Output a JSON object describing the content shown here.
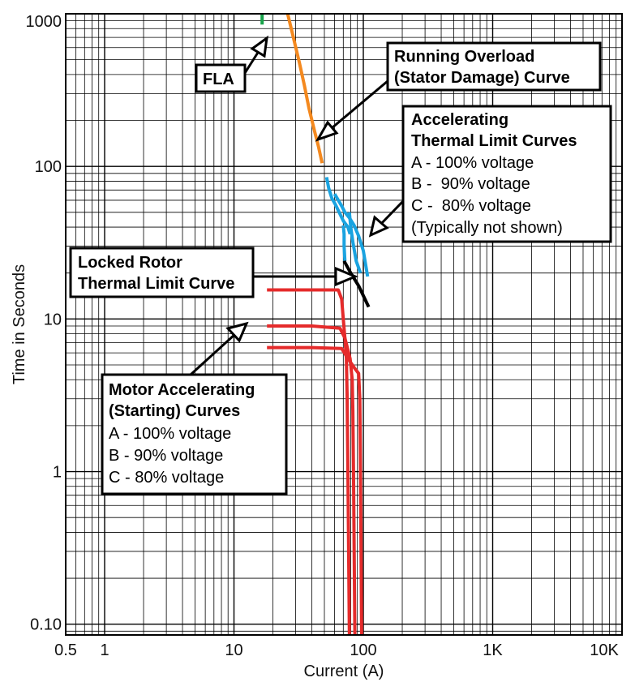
{
  "chart_data": {
    "type": "line",
    "title": "",
    "xlabel": "Current (A)",
    "ylabel": "Time in Seconds",
    "x_scale": "log",
    "y_scale": "log",
    "xlim": [
      0.5,
      10000
    ],
    "ylim": [
      0.085,
      1000
    ],
    "grid": true,
    "x_tick_labels": [
      {
        "value": 0.5,
        "label": "0.5"
      },
      {
        "value": 1,
        "label": "1"
      },
      {
        "value": 10,
        "label": "10"
      },
      {
        "value": 100,
        "label": "100"
      },
      {
        "value": 1000,
        "label": "1K"
      },
      {
        "value": 10000,
        "label": "10K"
      }
    ],
    "y_tick_labels": [
      {
        "value": 0.1,
        "label": "0.10"
      },
      {
        "value": 1,
        "label": "1"
      },
      {
        "value": 10,
        "label": "10"
      },
      {
        "value": 100,
        "label": "100"
      },
      {
        "value": 1000,
        "label": "1000"
      }
    ],
    "series": [
      {
        "color": "#17a34a",
        "x": [
          16.5,
          16.5
        ],
        "y": [
          850,
          1000
        ]
      },
      {
        "color": "#f4891f",
        "x": [
          26,
          29,
          32,
          35,
          38,
          42,
          45,
          48
        ],
        "y": [
          1000,
          680,
          480,
          340,
          240,
          170,
          135,
          105
        ]
      },
      {
        "color": "#1aa3e0",
        "x": [
          52,
          54,
          57,
          61,
          65,
          70,
          76,
          79
        ],
        "y": [
          85,
          72,
          62,
          56,
          50,
          44,
          40,
          36
        ]
      },
      {
        "color": "#1aa3e0",
        "x": [
          60,
          64,
          68,
          72,
          78,
          85,
          92,
          100,
          108
        ],
        "y": [
          66,
          60,
          55,
          50,
          46,
          41,
          35,
          28,
          19
        ]
      },
      {
        "color": "#1aa3e0",
        "x": [
          70,
          71,
          71,
          72
        ],
        "y": [
          41,
          36,
          30,
          24
        ]
      },
      {
        "color": "#1aa3e0",
        "x": [
          78,
          80,
          83,
          88,
          95
        ],
        "y": [
          50,
          40,
          32,
          24,
          20
        ]
      },
      {
        "color": "#000000",
        "x": [
          71,
          80,
          92,
          110
        ],
        "y": [
          24,
          20,
          16.5,
          12
        ]
      },
      {
        "color": "#e52b2b",
        "x": [
          18,
          40,
          64,
          68,
          70,
          72,
          74,
          75,
          76,
          77,
          78
        ],
        "y": [
          15.5,
          15.5,
          15.5,
          13.5,
          10,
          7.5,
          5.5,
          3,
          1,
          0.3,
          0.085
        ]
      },
      {
        "color": "#e52b2b",
        "x": [
          18,
          40,
          66,
          72,
          79,
          82,
          83,
          84,
          85,
          86
        ],
        "y": [
          9,
          9,
          8.7,
          7.5,
          5.5,
          4,
          2.5,
          1,
          0.3,
          0.085
        ]
      },
      {
        "color": "#e52b2b",
        "x": [
          18,
          40,
          68,
          75,
          85,
          92,
          94,
          95,
          96,
          97
        ],
        "y": [
          6.5,
          6.5,
          6.4,
          5.6,
          4.8,
          4.4,
          3,
          1,
          0.3,
          0.085
        ]
      }
    ],
    "annotations": {
      "fla": {
        "lines": [
          {
            "text": "FLA",
            "bold": true
          }
        ]
      },
      "running_overload": {
        "lines": [
          {
            "text": "Running Overload",
            "bold": true
          },
          {
            "text": "(Stator Damage) Curve",
            "bold": true
          }
        ]
      },
      "accelerating_thermal": {
        "lines": [
          {
            "text": "Accelerating",
            "bold": true
          },
          {
            "text": "Thermal Limit Curves",
            "bold": true
          },
          {
            "text": "A - 100% voltage",
            "bold": false
          },
          {
            "text": "B -  90% voltage",
            "bold": false
          },
          {
            "text": "C -  80% voltage",
            "bold": false
          },
          {
            "text": "(Typically not shown)",
            "bold": false
          }
        ]
      },
      "locked_rotor": {
        "lines": [
          {
            "text": "Locked Rotor",
            "bold": true
          },
          {
            "text": "Thermal Limit Curve",
            "bold": true
          }
        ]
      },
      "motor_accelerating": {
        "lines": [
          {
            "text": "Motor Accelerating",
            "bold": true
          },
          {
            "text": "(Starting) Curves",
            "bold": true
          },
          {
            "text": "A - 100% voltage",
            "bold": false
          },
          {
            "text": "B - 90% voltage",
            "bold": false
          },
          {
            "text": "C - 80% voltage",
            "bold": false
          }
        ]
      }
    }
  }
}
